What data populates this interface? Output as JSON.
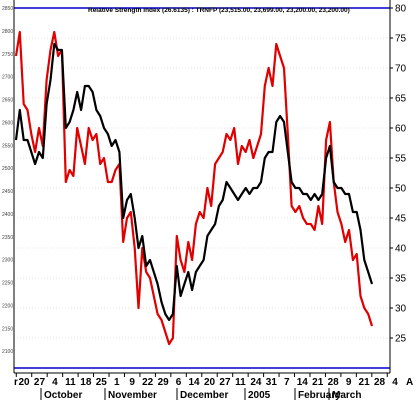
{
  "chart_data": {
    "type": "line",
    "title": "Relative Strength Index (26.6135) : TRNFP (23,515.00, 23,699.00, 23,200.00, 23,200.00)",
    "ylim": [
      20,
      80
    ],
    "y_ticks": [
      25,
      30,
      35,
      40,
      45,
      50,
      55,
      60,
      65,
      70,
      75,
      80
    ],
    "left_axis_ticks": [
      "2850",
      "2800",
      "2750",
      "2700",
      "2650",
      "2600",
      "2550",
      "2500",
      "2450",
      "2400",
      "2350",
      "2300",
      "2250",
      "2200",
      "2150",
      "2100"
    ],
    "reference_lines": [
      80,
      20
    ],
    "x_day_labels": [
      "20",
      "27",
      "4",
      "11",
      "18",
      "25",
      "1",
      "9",
      "22",
      "29",
      "6",
      "14",
      "20",
      "27",
      "11",
      "24",
      "31",
      "7",
      "14",
      "21",
      "28",
      "9",
      "21",
      "28",
      "4"
    ],
    "x_day_edge_labels": [
      "r",
      "A"
    ],
    "x_month_labels": [
      "October",
      "November",
      "December",
      "2005",
      "February",
      "March"
    ],
    "grid": true,
    "legend": "none",
    "series": [
      {
        "color": "#e00000",
        "values": [
          72,
          76,
          64,
          63,
          59,
          56,
          60,
          57,
          68,
          73,
          76,
          72,
          73,
          51,
          53,
          52,
          60,
          57,
          54,
          60,
          58,
          59,
          54,
          55,
          51,
          51,
          53,
          54,
          41,
          45,
          46,
          40,
          30,
          40,
          36,
          35,
          32,
          29,
          28,
          26,
          24,
          25,
          42,
          38,
          36,
          41,
          38,
          44,
          46,
          45,
          50,
          47,
          54,
          55,
          56,
          59,
          58,
          60,
          54,
          57,
          56,
          58,
          55,
          57,
          59,
          67,
          70,
          67,
          74,
          72,
          70,
          59,
          47,
          46,
          47,
          45,
          44,
          44,
          43,
          47,
          44,
          58,
          61,
          51,
          46,
          44,
          41,
          43,
          38,
          39,
          32,
          30,
          29,
          27
        ]
      },
      {
        "color": "#000000",
        "values": [
          58,
          63,
          58,
          58,
          56,
          54,
          56,
          55,
          64,
          68,
          74,
          73,
          73,
          60,
          61,
          63,
          66,
          63,
          67,
          67,
          66,
          63,
          62,
          60,
          59,
          57,
          58,
          56,
          45,
          48,
          49,
          45,
          40,
          42,
          37,
          38,
          36,
          34,
          31,
          29,
          28,
          29,
          37,
          32,
          34,
          36,
          33,
          36,
          37,
          38,
          42,
          43,
          44,
          47,
          48,
          51,
          50,
          49,
          48,
          49,
          50,
          49,
          50,
          50,
          51,
          55,
          56,
          56,
          61,
          62,
          61,
          56,
          51,
          50,
          50,
          49,
          49,
          48,
          49,
          48,
          49,
          55,
          57,
          51,
          50,
          50,
          49,
          49,
          46,
          46,
          43,
          38,
          36,
          34
        ]
      }
    ]
  }
}
